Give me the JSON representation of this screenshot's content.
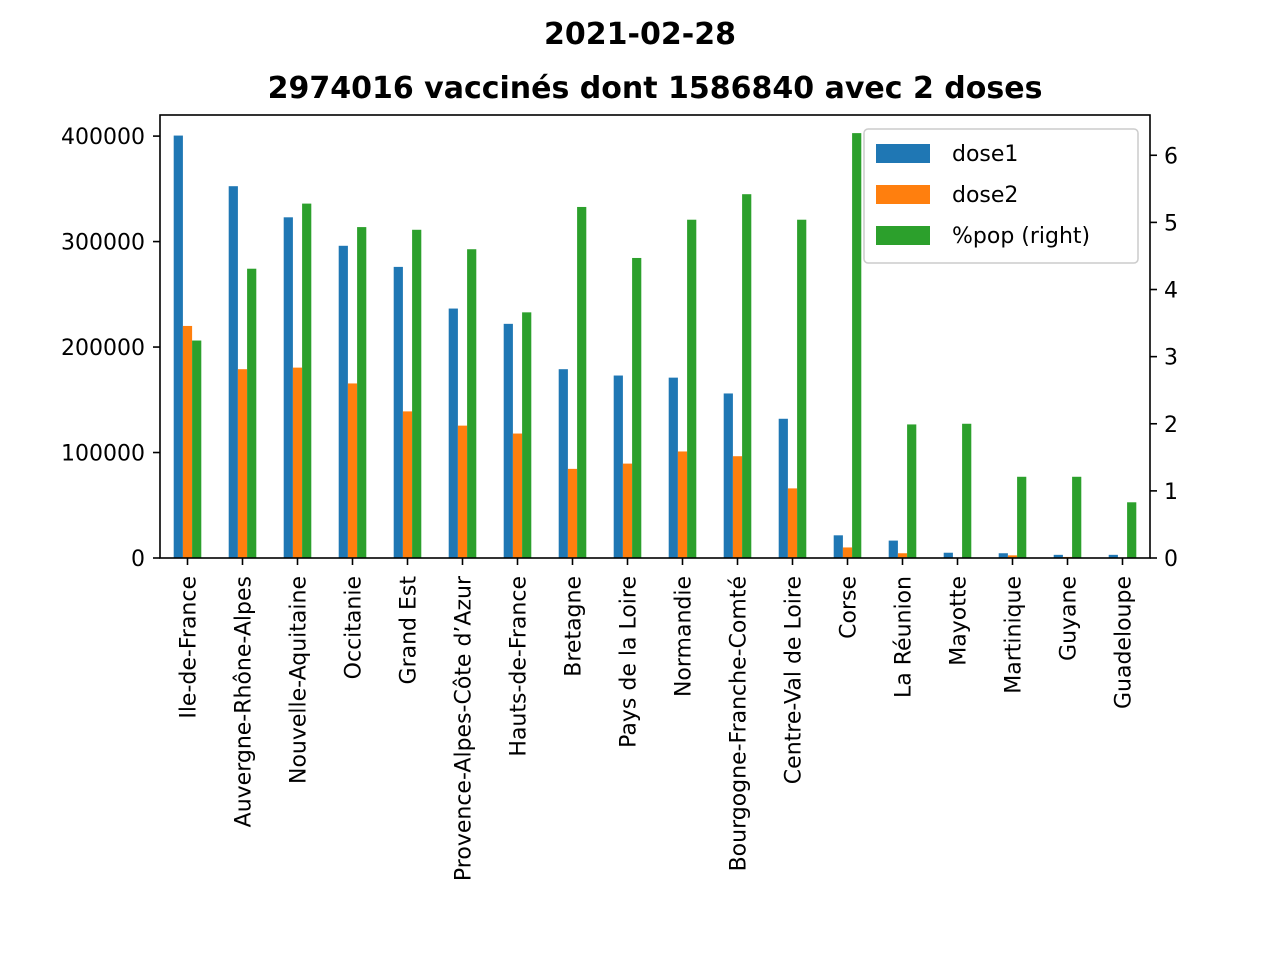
{
  "chart_data": {
    "type": "bar",
    "title": "2021-02-28",
    "subtitle": "2974016 vaccinés dont 1586840 avec 2 doses",
    "categories": [
      "Ile-de-France",
      "Auvergne-Rhône-Alpes",
      "Nouvelle-Aquitaine",
      "Occitanie",
      "Grand Est",
      "Provence-Alpes-Côte d’Azur",
      "Hauts-de-France",
      "Bretagne",
      "Pays de la Loire",
      "Normandie",
      "Bourgogne-Franche-Comté",
      "Centre-Val de Loire",
      "Corse",
      "La Réunion",
      "Mayotte",
      "Martinique",
      "Guyane",
      "Guadeloupe"
    ],
    "series": [
      {
        "name": "dose1",
        "axis": "left",
        "color": "#1f77b4",
        "values": [
          400500,
          352500,
          323000,
          296000,
          276000,
          236500,
          222000,
          179000,
          173000,
          171000,
          156000,
          132000,
          21500,
          16500,
          5000,
          4500,
          3000,
          3000
        ]
      },
      {
        "name": "dose2",
        "axis": "left",
        "color": "#ff7f0e",
        "values": [
          220000,
          179000,
          180500,
          165500,
          139000,
          125500,
          118000,
          84500,
          89500,
          101000,
          96500,
          66000,
          10000,
          4500,
          500,
          2500,
          1000,
          500
        ]
      },
      {
        "name": "%pop (right)",
        "axis": "right",
        "color": "#2ca02c",
        "values": [
          3.24,
          4.31,
          5.28,
          4.93,
          4.89,
          4.6,
          3.66,
          5.23,
          4.47,
          5.04,
          5.42,
          5.04,
          6.33,
          1.99,
          2.0,
          1.21,
          1.21,
          0.83
        ]
      }
    ],
    "y_left": {
      "lim": [
        0,
        420000
      ],
      "ticks": [
        0,
        100000,
        200000,
        300000,
        400000
      ]
    },
    "y_right": {
      "lim": [
        0,
        6.6
      ],
      "ticks": [
        0,
        1,
        2,
        3,
        4,
        5,
        6
      ]
    },
    "grid": false,
    "legend_position": "top-right"
  }
}
